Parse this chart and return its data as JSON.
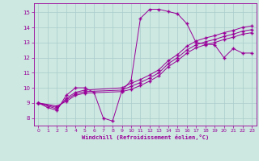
{
  "xlabel": "Windchill (Refroidissement éolien,°C)",
  "xlim": [
    -0.5,
    23.5
  ],
  "ylim": [
    7.5,
    15.6
  ],
  "xticks": [
    0,
    1,
    2,
    3,
    4,
    5,
    6,
    7,
    8,
    9,
    10,
    11,
    12,
    13,
    14,
    15,
    16,
    17,
    18,
    19,
    20,
    21,
    22,
    23
  ],
  "yticks": [
    8,
    9,
    10,
    11,
    12,
    13,
    14,
    15
  ],
  "bg_color": "#cce8e0",
  "line_color": "#990099",
  "grid_color": "#aacccc",
  "lines": [
    {
      "x": [
        0,
        1,
        2,
        3,
        4,
        5,
        6,
        7,
        8,
        9,
        10,
        11,
        12,
        13,
        14,
        15,
        16,
        17,
        18,
        19,
        20,
        21,
        22,
        23
      ],
      "y": [
        9.0,
        8.7,
        8.5,
        9.5,
        10.0,
        10.0,
        9.7,
        8.0,
        7.8,
        9.8,
        10.5,
        14.6,
        15.2,
        15.2,
        15.05,
        14.9,
        14.25,
        13.0,
        12.9,
        12.85,
        12.0,
        12.6,
        12.3,
        12.3
      ]
    },
    {
      "x": [
        0,
        2,
        3,
        4,
        5,
        9,
        10,
        11,
        12,
        13,
        14,
        15,
        16,
        17,
        18,
        19,
        20,
        21,
        22,
        23
      ],
      "y": [
        9.0,
        8.6,
        9.3,
        9.7,
        9.85,
        10.0,
        10.3,
        10.55,
        10.85,
        11.2,
        11.8,
        12.2,
        12.75,
        13.1,
        13.3,
        13.45,
        13.65,
        13.8,
        14.0,
        14.1
      ]
    },
    {
      "x": [
        0,
        2,
        3,
        4,
        5,
        9,
        10,
        11,
        12,
        13,
        14,
        15,
        16,
        17,
        18,
        19,
        20,
        21,
        22,
        23
      ],
      "y": [
        9.0,
        8.7,
        9.2,
        9.6,
        9.75,
        9.85,
        10.1,
        10.35,
        10.65,
        11.0,
        11.6,
        12.0,
        12.5,
        12.85,
        13.05,
        13.2,
        13.4,
        13.55,
        13.75,
        13.85
      ]
    },
    {
      "x": [
        0,
        2,
        3,
        4,
        5,
        9,
        10,
        11,
        12,
        13,
        14,
        15,
        16,
        17,
        18,
        19,
        20,
        21,
        22,
        23
      ],
      "y": [
        9.0,
        8.8,
        9.1,
        9.5,
        9.65,
        9.75,
        9.9,
        10.15,
        10.45,
        10.8,
        11.4,
        11.8,
        12.3,
        12.65,
        12.85,
        13.0,
        13.2,
        13.35,
        13.55,
        13.65
      ]
    }
  ]
}
